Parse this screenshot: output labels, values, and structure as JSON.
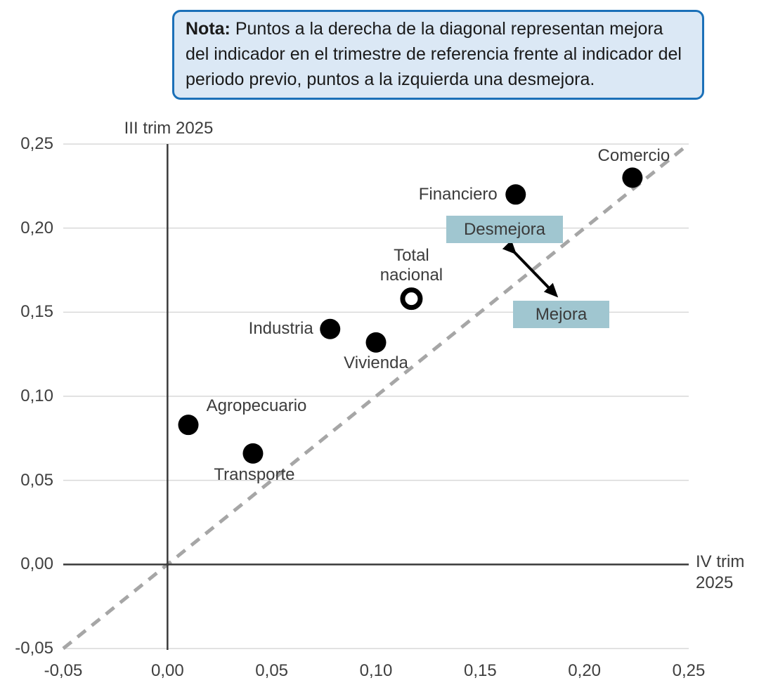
{
  "note": {
    "label": "Nota:",
    "text": "Puntos a la derecha de la diagonal representan mejora del indicador en el trimestre de referencia frente al indicador del periodo previo, puntos a la izquierda una desmejora."
  },
  "colors": {
    "note_bg": "#dbe8f5",
    "note_border": "#1b70b8",
    "annotation_bg": "#a0c6d0",
    "dot": "#000000",
    "diagonal": "#a6a6a6",
    "gridline": "#d9d9d9",
    "axis_line": "#3a3a3a",
    "text": "#3c3c3c"
  },
  "chart_data": {
    "type": "scatter",
    "x_axis_label": "IV trim 2025",
    "y_axis_label": "III trim 2025",
    "xlim": [
      -0.05,
      0.25
    ],
    "ylim": [
      -0.05,
      0.25
    ],
    "x_ticks": [
      "-0,05",
      "0,00",
      "0,05",
      "0,10",
      "0,15",
      "0,20",
      "0,25"
    ],
    "y_ticks": [
      "0,25",
      "0,20",
      "0,15",
      "0,10",
      "0,05",
      "0,00",
      "-0,05"
    ],
    "x_tick_values": [
      -0.05,
      0.0,
      0.05,
      0.1,
      0.15,
      0.2,
      0.25
    ],
    "y_tick_values": [
      0.25,
      0.2,
      0.15,
      0.1,
      0.05,
      0.0,
      -0.05
    ],
    "grid": "horizontal-only",
    "legend": "none",
    "diagonal": {
      "style": "dashed",
      "from": [
        -0.05,
        -0.05
      ],
      "to": [
        0.25,
        0.25
      ]
    },
    "points": [
      {
        "name": "Agropecuario",
        "x": 0.01,
        "y": 0.083,
        "marker": "filled"
      },
      {
        "name": "Transporte",
        "x": 0.041,
        "y": 0.066,
        "marker": "filled"
      },
      {
        "name": "Industria",
        "x": 0.078,
        "y": 0.14,
        "marker": "filled"
      },
      {
        "name": "Vivienda",
        "x": 0.1,
        "y": 0.132,
        "marker": "filled"
      },
      {
        "name": "Total nacional",
        "x": 0.117,
        "y": 0.158,
        "marker": "open"
      },
      {
        "name": "Financiero",
        "x": 0.167,
        "y": 0.22,
        "marker": "filled"
      },
      {
        "name": "Comercio",
        "x": 0.223,
        "y": 0.23,
        "marker": "filled"
      }
    ],
    "annotations": [
      {
        "label": "Desmejora"
      },
      {
        "label": "Mejora"
      }
    ]
  }
}
